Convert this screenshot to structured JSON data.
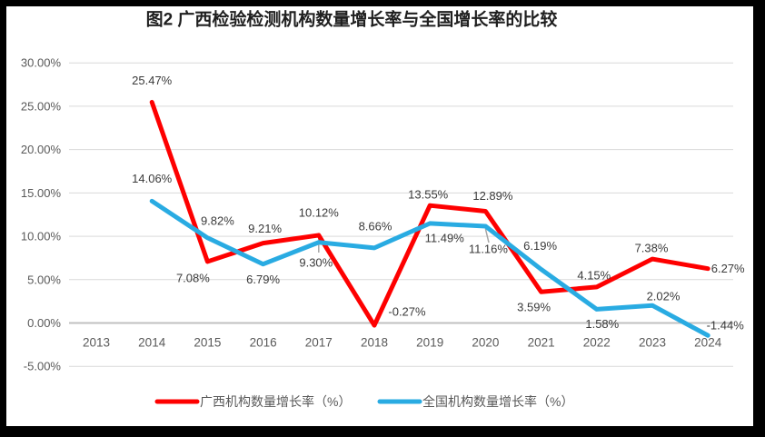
{
  "chart_data": {
    "type": "line",
    "title": "图2 广西检验检测机构数量增长率与全国增长率的比较",
    "categories": [
      "2013",
      "2014",
      "2015",
      "2016",
      "2017",
      "2018",
      "2019",
      "2020",
      "2021",
      "2022",
      "2023",
      "2024"
    ],
    "series": [
      {
        "name": "广西机构数量增长率（%）",
        "color": "#FE0000",
        "values": [
          null,
          25.47,
          7.08,
          9.21,
          10.12,
          -0.27,
          13.55,
          12.89,
          3.59,
          4.15,
          7.38,
          6.27
        ],
        "labels": [
          null,
          "25.47%",
          "7.08%",
          "9.21%",
          "10.12%",
          "-0.27%",
          "13.55%",
          "12.89%",
          "3.59%",
          "4.15%",
          "7.38%",
          "6.27%"
        ]
      },
      {
        "name": "全国机构数量增长率（%）",
        "color": "#29ABE2",
        "values": [
          null,
          14.06,
          9.82,
          6.79,
          9.3,
          8.66,
          11.49,
          11.16,
          6.19,
          1.58,
          2.02,
          -1.44
        ],
        "labels": [
          null,
          "14.06%",
          "9.82%",
          "6.79%",
          "9.30%",
          "8.66%",
          "11.49%",
          "11.16%",
          "6.19%",
          "1.58%",
          "2.02%",
          "-1.44%"
        ]
      }
    ],
    "y_ticks": [
      {
        "value": 30,
        "label": "30.00%"
      },
      {
        "value": 25,
        "label": "25.00%"
      },
      {
        "value": 20,
        "label": "20.00%"
      },
      {
        "value": 15,
        "label": "15.00%"
      },
      {
        "value": 10,
        "label": "10.00%"
      },
      {
        "value": 5,
        "label": "5.00%"
      },
      {
        "value": 0,
        "label": "0.00%"
      },
      {
        "value": -5,
        "label": "-5.00%"
      }
    ],
    "ylim": [
      -5,
      30
    ],
    "xlabel": "",
    "ylabel": "",
    "grid": true,
    "markers": false,
    "legend_position": "bottom",
    "label_offsets": [
      [
        null,
        [
          0,
          -24
        ],
        [
          -16,
          18
        ],
        [
          2,
          -16
        ],
        [
          0,
          -25
        ],
        [
          36,
          -15
        ],
        [
          -2,
          -12
        ],
        [
          8,
          -17
        ],
        [
          -8,
          17
        ],
        [
          -3,
          -13
        ],
        [
          -1,
          -12
        ],
        [
          22,
          0
        ]
      ],
      [
        null,
        [
          0,
          -25
        ],
        [
          11,
          -19
        ],
        [
          0,
          17
        ],
        [
          -3,
          22
        ],
        [
          1,
          -24
        ],
        [
          16,
          16
        ],
        [
          3,
          25
        ],
        [
          -1,
          -26
        ],
        [
          6,
          16
        ],
        [
          12,
          -10
        ],
        [
          19,
          -11
        ]
      ]
    ]
  },
  "colors": {
    "guangxi_line": "#FE0000",
    "national_line": "#29ABE2",
    "gridline": "#D9D9D9",
    "zero_line": "#C0C0C0",
    "leader_line": "#A6A6A6",
    "axis_text": "#595959",
    "label_text": "#3A3A3A",
    "title_text": "#1F1F1F",
    "frame": "#000000",
    "background": "#FFFFFF"
  }
}
